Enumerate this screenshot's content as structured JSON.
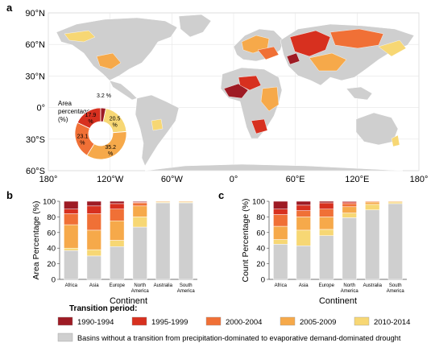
{
  "panels": {
    "a": "a",
    "b": "b",
    "c": "c"
  },
  "colors": {
    "p1990": "#9e1b24",
    "p1995": "#d7301f",
    "p2000": "#f07036",
    "p2005": "#f6a94a",
    "p2010": "#f7d774",
    "none": "#cfcfcf",
    "ocean": "#ffffff",
    "grid": "#e6e6e6"
  },
  "map": {
    "lat_labels": [
      "90°N",
      "60°N",
      "30°N",
      "0°",
      "30°S",
      "60°S"
    ],
    "lon_labels": [
      "180°",
      "120°W",
      "60°W",
      "0°",
      "60°E",
      "120°E",
      "180°"
    ]
  },
  "chart_data": [
    {
      "type": "pie",
      "title": "Area percentage (%)",
      "slices": [
        {
          "label": "20.5 %",
          "value": 20.5,
          "period": "2010-2014"
        },
        {
          "label": "35.2 %",
          "value": 35.2,
          "period": "2005-2009"
        },
        {
          "label": "23.1 %",
          "value": 23.1,
          "period": "2000-2004"
        },
        {
          "label": "17.9 %",
          "value": 17.9,
          "period": "1995-1999"
        },
        {
          "label": "3.2 %",
          "value": 3.2,
          "period": "1990-1994"
        }
      ]
    },
    {
      "type": "bar",
      "stacked": true,
      "ylabel": "Area Percentage (%)",
      "xlabel": "Continent",
      "ylim": [
        0,
        100
      ],
      "yticks": [
        "0",
        "20",
        "40",
        "60",
        "80",
        "100"
      ],
      "categories": [
        "Africa",
        "Asia",
        "Europe",
        "North America",
        "Australia",
        "South America"
      ],
      "series": [
        {
          "name": "none",
          "values": [
            37,
            30,
            42,
            67,
            98,
            98
          ]
        },
        {
          "name": "2010-2014",
          "values": [
            3,
            8,
            8,
            13,
            1,
            1
          ]
        },
        {
          "name": "2005-2009",
          "values": [
            30,
            25,
            25,
            14,
            1,
            1
          ]
        },
        {
          "name": "2000-2004",
          "values": [
            14,
            21,
            15,
            4,
            0,
            0
          ]
        },
        {
          "name": "1995-1999",
          "values": [
            6,
            10,
            7,
            1,
            0,
            0
          ]
        },
        {
          "name": "1990-1994",
          "values": [
            10,
            6,
            3,
            1,
            0,
            0
          ]
        }
      ]
    },
    {
      "type": "bar",
      "stacked": true,
      "ylabel": "Count Percentage (%)",
      "xlabel": "Continent",
      "ylim": [
        0,
        100
      ],
      "yticks": [
        "0",
        "20",
        "40",
        "60",
        "80",
        "100"
      ],
      "categories": [
        "Africa",
        "Asia",
        "Europe",
        "North America",
        "Australia",
        "South America"
      ],
      "series": [
        {
          "name": "none",
          "values": [
            45,
            43,
            56,
            79,
            89,
            97
          ]
        },
        {
          "name": "2010-2014",
          "values": [
            6,
            20,
            8,
            6,
            7,
            2
          ]
        },
        {
          "name": "2005-2009",
          "values": [
            17,
            17,
            16,
            8,
            3,
            1
          ]
        },
        {
          "name": "2000-2004",
          "values": [
            15,
            8,
            10,
            4,
            1,
            0
          ]
        },
        {
          "name": "1995-1999",
          "values": [
            7,
            7,
            8,
            2,
            0,
            0
          ]
        },
        {
          "name": "1990-1994",
          "values": [
            10,
            5,
            2,
            1,
            0,
            0
          ]
        }
      ]
    }
  ],
  "legend": {
    "title": "Transition period:",
    "items": [
      {
        "label": "1990-1994",
        "key": "p1990"
      },
      {
        "label": "1995-1999",
        "key": "p1995"
      },
      {
        "label": "2000-2004",
        "key": "p2000"
      },
      {
        "label": "2005-2009",
        "key": "p2005"
      },
      {
        "label": "2010-2014",
        "key": "p2010"
      }
    ],
    "none_label": "Basins without a transition from precipitation-dominated to evaporative demand-dominated drought"
  }
}
